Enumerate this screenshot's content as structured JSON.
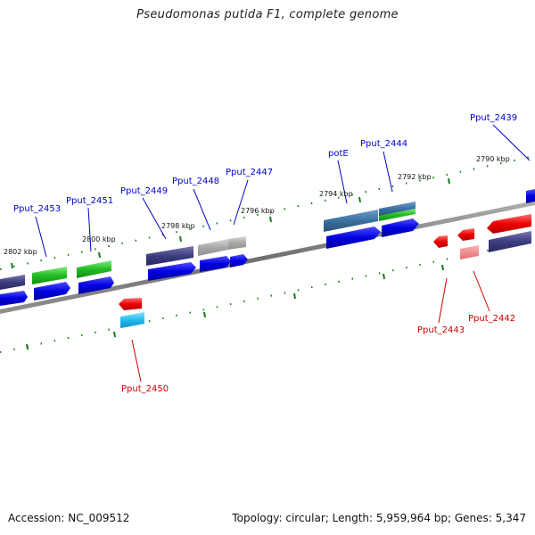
{
  "title": "Pseudomonas putida F1, complete genome",
  "footer": {
    "accession": "Accession: NC_009512",
    "summary": "Topology: circular; Length: 5,959,964 bp; Genes: 5,347"
  },
  "tick_labels": [
    "2802 kbp",
    "2800 kbp",
    "2798 kbp",
    "2796 kbp",
    "2794 kbp",
    "2792 kbp",
    "2790 kbp"
  ],
  "gene_labels": {
    "blue": [
      "Pput_2453",
      "Pput_2451",
      "Pput_2449",
      "Pput_2448",
      "Pput_2447",
      "potE",
      "Pput_2444",
      "Pput_2439"
    ],
    "red": [
      "Pput_2450",
      "Pput_2443",
      "Pput_2442"
    ]
  },
  "colors": {
    "backbone": "#8a8a8a",
    "tick": "#1a7a1a",
    "forward_cds": "#0000dd",
    "reverse_cds": "#ee0000",
    "label_forward": "#0000cc",
    "label_reverse": "#cc0000"
  }
}
